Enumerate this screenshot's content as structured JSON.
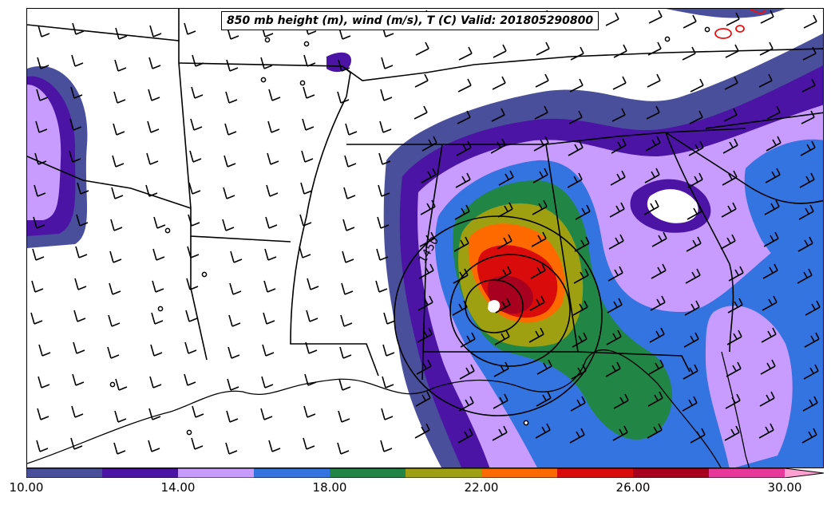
{
  "title": "850 mb height (m), wind (m/s), T (C) Valid: 201805290800",
  "contour_label": "1450",
  "colorbar": {
    "colors": [
      "#4a4f9c",
      "#4b14a5",
      "#c89cff",
      "#3474e0",
      "#218645",
      "#9ea012",
      "#ff6a00",
      "#d90b0b",
      "#a8001f",
      "#e8389c",
      "#ff9fd2"
    ],
    "tick_labels": [
      "10.00",
      "14.00",
      "18.00",
      "22.00",
      "26.00",
      "30.00"
    ]
  },
  "icons": {
    "wind-barb": "wind-barb-icon",
    "calm": "calm-circle-icon"
  }
}
